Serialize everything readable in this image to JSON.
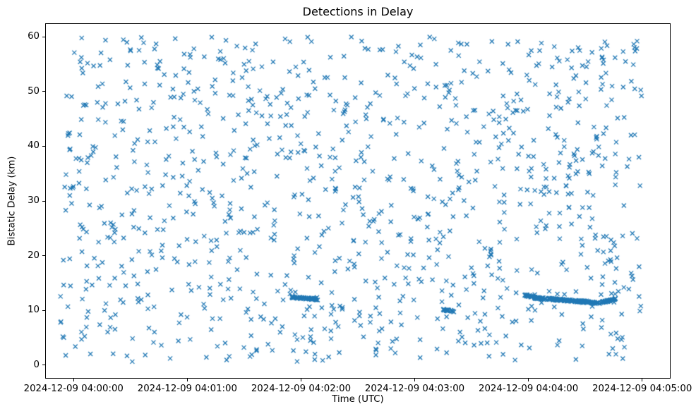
{
  "chart_data": {
    "type": "scatter",
    "title": "Detections in Delay",
    "xlabel": "Time (UTC)",
    "ylabel": "Bistatic Delay (km)",
    "x_tick_labels": [
      "2024-12-09 04:00:00",
      "2024-12-09 04:01:00",
      "2024-12-09 04:02:00",
      "2024-12-09 04:03:00",
      "2024-12-09 04:04:00",
      "2024-12-09 04:05:00"
    ],
    "x_ticks_seconds": [
      0,
      60,
      120,
      180,
      240,
      300
    ],
    "y_ticks": [
      0,
      10,
      20,
      30,
      40,
      50,
      60
    ],
    "xlim_seconds": [
      -15,
      315
    ],
    "ylim": [
      -2.5,
      62.5
    ],
    "grid": false,
    "legend": "none",
    "marker": "x",
    "marker_color": "#1f77b4",
    "marker_size_px": 6,
    "series": {
      "name": "detections",
      "noise": {
        "description": "uniform random clutter detections over full delay extent",
        "count": 1100,
        "t_range_seconds": [
          -7,
          300
        ],
        "delay_range_km": [
          0.5,
          60
        ],
        "seed": 1234567
      },
      "tracks": [
        {
          "description": "dense target track near 04:02:00",
          "t_start": 115,
          "t_end": 129,
          "delay_start_km": 12.4,
          "delay_end_km": 12.0,
          "count": 70,
          "jitter_km": 0.15
        },
        {
          "description": "dense cluster near 04:03:15",
          "t_start": 195,
          "t_end": 201,
          "delay_start_km": 10.1,
          "delay_end_km": 9.8,
          "count": 30,
          "jitter_km": 0.12
        },
        {
          "description": "dense cluster near 04:04:00",
          "t_start": 238,
          "t_end": 242,
          "delay_start_km": 12.8,
          "delay_end_km": 12.5,
          "count": 25,
          "jitter_km": 0.15
        },
        {
          "description": "long descending track 04:04:03-04:04:38",
          "t_start": 243,
          "t_end": 278,
          "delay_start_km": 12.3,
          "delay_end_km": 11.3,
          "count": 160,
          "jitter_km": 0.18
        },
        {
          "description": "rising tail of track near 04:04:45",
          "t_start": 278,
          "t_end": 286,
          "delay_start_km": 11.4,
          "delay_end_km": 12.1,
          "count": 45,
          "jitter_km": 0.15
        }
      ]
    }
  }
}
